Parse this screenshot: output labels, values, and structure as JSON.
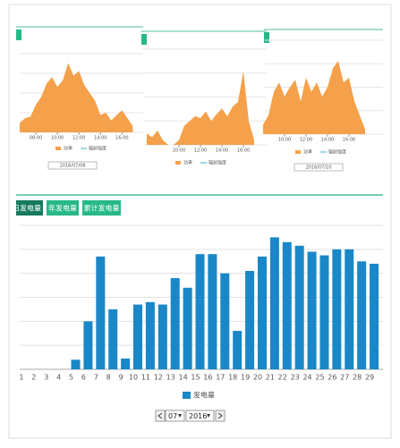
{
  "chart_data": [
    {
      "type": "area",
      "date": "2016/07/08",
      "xlim": [
        6.5,
        17.3
      ],
      "ylim": [
        0,
        100
      ],
      "grid": true,
      "xticks": [
        {
          "value": 8,
          "label": "08:00"
        },
        {
          "value": 10,
          "label": "10:00"
        },
        {
          "value": 12,
          "label": "12:00"
        },
        {
          "value": 14,
          "label": "14:00"
        },
        {
          "value": 16,
          "label": "16:00"
        }
      ],
      "x": [
        6.5,
        7,
        7.5,
        8,
        8.5,
        9,
        9.5,
        10,
        10.5,
        11,
        11.5,
        12,
        12.5,
        13,
        13.5,
        14,
        14.5,
        15,
        15.5,
        16,
        16.5,
        17
      ],
      "series": [
        {
          "name": "功率",
          "color": "#f5a04a",
          "values": [
            12,
            18,
            20,
            35,
            45,
            62,
            70,
            58,
            66,
            88,
            72,
            78,
            60,
            50,
            40,
            22,
            25,
            15,
            22,
            28,
            18,
            8
          ]
        },
        {
          "name": "辐射强度",
          "color": "#3cb4c8",
          "values": [
            null,
            null,
            null,
            null,
            null,
            null,
            null,
            null,
            null,
            null,
            null,
            null,
            null,
            null,
            null,
            null,
            null,
            null,
            null,
            null,
            null,
            null
          ]
        }
      ]
    },
    {
      "type": "area",
      "xlim": [
        6.67,
        17.5
      ],
      "ylim": [
        0,
        100
      ],
      "grid": true,
      "xticks": [
        {
          "value": 10,
          "label": "10:00"
        },
        {
          "value": 12,
          "label": "12:00"
        },
        {
          "value": 14,
          "label": "14:00"
        },
        {
          "value": 16,
          "label": "16:00"
        }
      ],
      "x": [
        7,
        7.5,
        8,
        8.5,
        9,
        9.5,
        10,
        10.5,
        11,
        11.5,
        12,
        12.5,
        13,
        13.5,
        14,
        14.5,
        15,
        15.5,
        16,
        16.5,
        17
      ],
      "series": [
        {
          "name": "功率",
          "color": "#f5a04a",
          "values": [
            12,
            8,
            15,
            5,
            0,
            0,
            5,
            20,
            25,
            30,
            28,
            35,
            25,
            32,
            38,
            30,
            40,
            45,
            77,
            25,
            5
          ]
        },
        {
          "name": "辐射强度",
          "color": "#3cb4c8",
          "values": [
            null,
            null,
            null,
            null,
            null,
            null,
            null,
            null,
            null,
            null,
            null,
            null,
            null,
            null,
            null,
            null,
            null,
            null,
            null,
            null,
            null
          ]
        }
      ]
    },
    {
      "type": "area",
      "date": "2016/07/10",
      "xlim": [
        8.17,
        18.5
      ],
      "ylim": [
        0,
        100
      ],
      "grid": true,
      "xticks": [
        {
          "value": 10,
          "label": "10:00"
        },
        {
          "value": 12,
          "label": "12:00"
        },
        {
          "value": 14,
          "label": "14:00"
        },
        {
          "value": 16,
          "label": "16:00"
        }
      ],
      "x": [
        8,
        8.5,
        9,
        9.5,
        10,
        10.5,
        11,
        11.5,
        12,
        12.5,
        13,
        13.5,
        14,
        14.5,
        15,
        15.5,
        16,
        16.5,
        17,
        17.5
      ],
      "series": [
        {
          "name": "功率",
          "color": "#f5a04a",
          "values": [
            10,
            20,
            45,
            55,
            40,
            50,
            58,
            35,
            60,
            45,
            55,
            40,
            50,
            70,
            78,
            55,
            60,
            35,
            20,
            5
          ]
        },
        {
          "name": "辐射强度",
          "color": "#3cb4c8",
          "values": [
            null,
            null,
            null,
            null,
            null,
            null,
            null,
            null,
            null,
            null,
            null,
            null,
            null,
            null,
            null,
            null,
            null,
            null,
            null,
            null
          ]
        }
      ]
    },
    {
      "type": "bar",
      "ylim": [
        0,
        6
      ],
      "grid": true,
      "categories": [
        "1",
        "2",
        "3",
        "4",
        "5",
        "6",
        "7",
        "8",
        "9",
        "10",
        "11",
        "12",
        "13",
        "14",
        "15",
        "16",
        "17",
        "18",
        "19",
        "20",
        "21",
        "22",
        "23",
        "24",
        "25",
        "26",
        "27",
        "28",
        "29"
      ],
      "series": [
        {
          "name": "发电量",
          "color": "#1a87c8",
          "values": [
            0,
            0,
            0,
            0,
            0.4,
            2.0,
            4.7,
            2.5,
            0.45,
            2.7,
            2.8,
            2.7,
            3.8,
            3.4,
            4.8,
            4.8,
            4.0,
            1.6,
            4.1,
            4.7,
            5.5,
            5.3,
            5.15,
            4.9,
            4.75,
            5.0,
            5.0,
            4.5,
            4.4
          ]
        }
      ]
    }
  ],
  "ui": {
    "tabs": [
      "日发电量",
      "年发电量",
      "累计发电量"
    ],
    "month": "07",
    "year": "2016"
  }
}
